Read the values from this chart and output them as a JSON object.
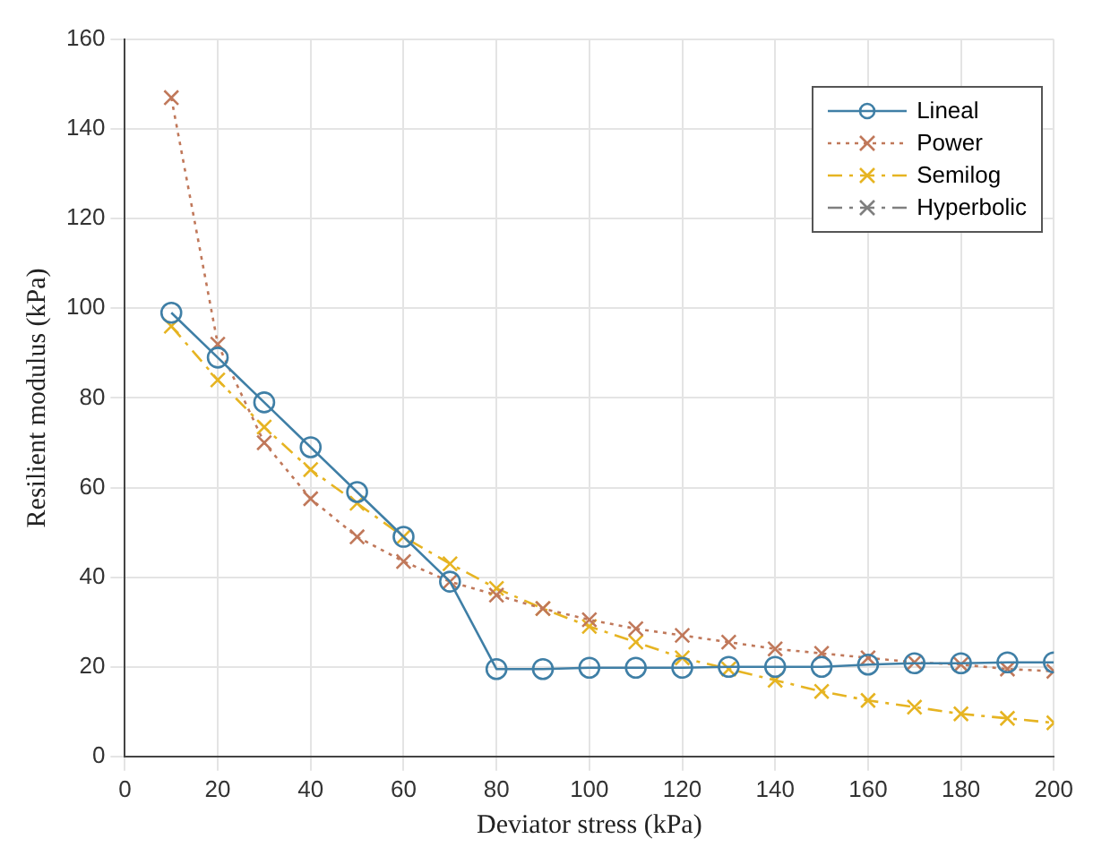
{
  "chart_data": {
    "type": "line",
    "xlabel": "Deviator stress (kPa)",
    "ylabel": "Resilient modulus (kPa)",
    "x": [
      10,
      20,
      30,
      40,
      50,
      60,
      70,
      80,
      90,
      100,
      110,
      120,
      130,
      140,
      150,
      160,
      170,
      180,
      190,
      200
    ],
    "series": [
      {
        "name": "Lineal",
        "color": "#3f7fa6",
        "marker": "circle",
        "line_style": "solid",
        "values": [
          99,
          89,
          79,
          69,
          59,
          49,
          39,
          19.5,
          19.5,
          19.8,
          19.8,
          19.8,
          20,
          20,
          20,
          20.5,
          20.8,
          20.8,
          21,
          21
        ]
      },
      {
        "name": "Power",
        "color": "#c0785a",
        "marker": "cross",
        "line_style": "dotted",
        "values": [
          147,
          92,
          70,
          57.5,
          49,
          43.5,
          39,
          36,
          33,
          30.5,
          28.5,
          27,
          25.5,
          24,
          23,
          22,
          21,
          20.5,
          19.5,
          19
        ]
      },
      {
        "name": "Semilog",
        "color": "#e6b422",
        "marker": "cross",
        "line_style": "dashed",
        "values": [
          96,
          84,
          73.5,
          64,
          56.5,
          49,
          43,
          37.5,
          33,
          29,
          25.5,
          22,
          19.5,
          17,
          14.5,
          12.5,
          11,
          9.5,
          8.5,
          7.5
        ]
      },
      {
        "name": "Hyperbolic",
        "color": "#7f7f7f",
        "marker": "cross",
        "line_style": "dashed",
        "values": [
          null,
          null,
          null,
          null,
          null,
          null,
          null,
          null,
          null,
          null,
          null,
          null,
          null,
          null,
          null,
          null,
          null,
          null,
          null,
          null
        ]
      }
    ],
    "xlim": [
      0,
      200
    ],
    "xticks": [
      0,
      20,
      40,
      60,
      80,
      100,
      120,
      140,
      160,
      180,
      200
    ],
    "ylim": [
      0,
      160
    ],
    "yticks": [
      0,
      20,
      40,
      60,
      80,
      100,
      120,
      140,
      160
    ],
    "grid": true,
    "legend": "top right"
  }
}
